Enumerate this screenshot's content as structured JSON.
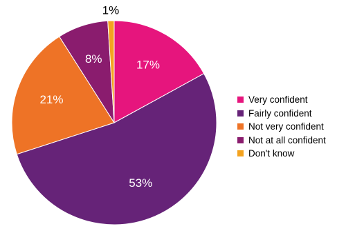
{
  "chart_data": {
    "type": "pie",
    "categories": [
      "Very confident",
      "Fairly confident",
      "Not very confident",
      "Not at all confident",
      "Don't know"
    ],
    "values": [
      17,
      53,
      21,
      8,
      1
    ],
    "data_labels": [
      "17%",
      "53%",
      "21%",
      "8%",
      "1%"
    ],
    "colors": [
      "#e6157d",
      "#662378",
      "#ee7326",
      "#8a1c6e",
      "#f4a31f"
    ],
    "legend_position": "right"
  }
}
